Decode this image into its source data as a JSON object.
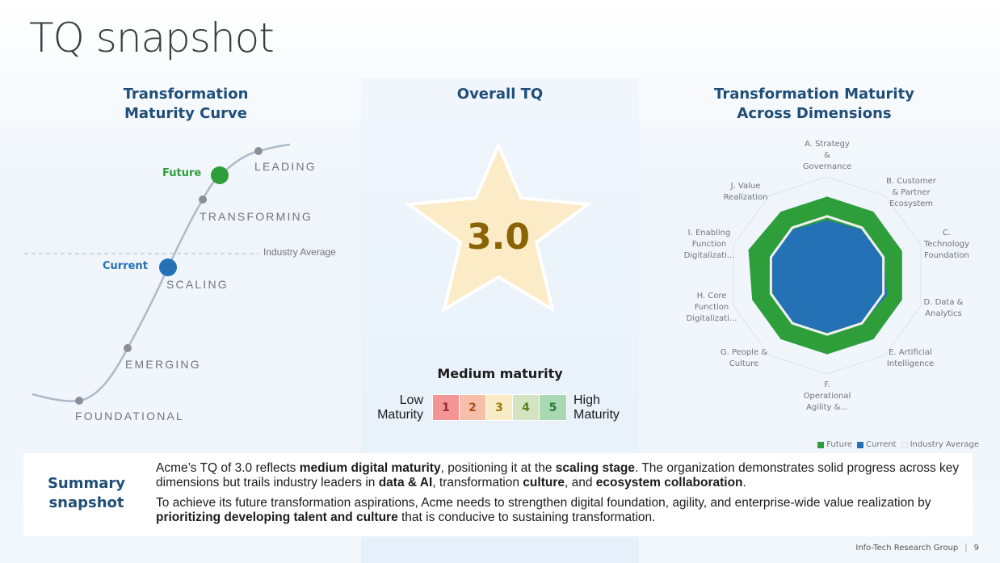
{
  "page": {
    "title": "TQ snapshot"
  },
  "curve_section": {
    "title_line1": "Transformation",
    "title_line2": "Maturity Curve",
    "stages": [
      "FOUNDATIONAL",
      "EMERGING",
      "SCALING",
      "TRANSFORMING",
      "LEADING"
    ],
    "markers": {
      "current_label": "Current",
      "future_label": "Future"
    },
    "industry_average_label": "Industry Average",
    "colors": {
      "current": "#2471b6",
      "future": "#2e9e3a",
      "stage_dot": "#8a9099",
      "curve": "#aebbc8"
    }
  },
  "overall_section": {
    "title": "Overall TQ",
    "score": "3.0",
    "maturity_heading": "Medium maturity",
    "scale_low_line1": "Low",
    "scale_low_line2": "Maturity",
    "scale_high_line1": "High",
    "scale_high_line2": "Maturity",
    "scale": [
      {
        "value": "1",
        "bg": "#f49494",
        "fg": "#9b2c2c"
      },
      {
        "value": "2",
        "bg": "#f7bea9",
        "fg": "#a8511f"
      },
      {
        "value": "3",
        "bg": "#faebc7",
        "fg": "#9b7a12"
      },
      {
        "value": "4",
        "bg": "#d4e4c0",
        "fg": "#5b7f1f"
      },
      {
        "value": "5",
        "bg": "#a9d8b5",
        "fg": "#2a7a33"
      }
    ],
    "star_fill": "#fbecc7",
    "score_color": "#8a6305"
  },
  "dimensions_section": {
    "title_line1": "Transformation Maturity",
    "title_line2": "Across Dimensions",
    "legend": {
      "future": "Future",
      "current": "Current",
      "industry_average": "Industry Average"
    }
  },
  "chart_data": {
    "type": "radar",
    "title": "Transformation Maturity Across Dimensions",
    "categories": [
      "A. Strategy & Governance",
      "B. Customer & Partner Ecosystem",
      "C. Technology Foundation",
      "D. Data & Analytics",
      "E. Artificial Intelligence",
      "F. Operational Agility &...",
      "G. People & Culture",
      "H. Core Function Digitalizati...",
      "I. Enabling Function Digitalizati...",
      "J. Value Realization"
    ],
    "category_labels_lines": [
      [
        "A. Strategy",
        "&",
        "Governance"
      ],
      [
        "B. Customer",
        "& Partner",
        "Ecosystem"
      ],
      [
        "C.",
        "Technology",
        "Foundation"
      ],
      [
        "D. Data &",
        "Analytics"
      ],
      [
        "E. Artificial",
        "Intelligence"
      ],
      [
        "F.",
        "Operational",
        "Agility &..."
      ],
      [
        "G. People &",
        "Culture"
      ],
      [
        "H. Core",
        "Function",
        "Digitalizati..."
      ],
      [
        "I. Enabling",
        "Function",
        "Digitalizati..."
      ],
      [
        "J. Value",
        "Realization"
      ]
    ],
    "rmax": 5,
    "series": [
      {
        "name": "Future",
        "color": "#2e9e3a",
        "values": [
          4.0,
          4.0,
          4.0,
          4.0,
          4.0,
          4.0,
          4.0,
          4.0,
          4.2,
          4.0
        ]
      },
      {
        "name": "Current",
        "color": "#2471b6",
        "values": [
          2.8,
          2.9,
          3.0,
          3.2,
          3.0,
          2.9,
          3.0,
          2.9,
          3.1,
          2.9
        ]
      },
      {
        "name": "Industry Average",
        "color": "#f0f0f0",
        "values": [
          3.0,
          3.0,
          3.0,
          3.0,
          3.0,
          3.0,
          3.0,
          3.0,
          3.0,
          3.0
        ]
      }
    ],
    "legend_position": "bottom-right",
    "grid": true
  },
  "summary": {
    "title_line1": "Summary",
    "title_line2": "snapshot",
    "p1": [
      {
        "t": "Acme’s TQ of 3.0 reflects ",
        "b": false
      },
      {
        "t": "medium digital maturity",
        "b": true
      },
      {
        "t": ", positioning it at the ",
        "b": false
      },
      {
        "t": "scaling stage",
        "b": true
      },
      {
        "t": ". The organization demonstrates solid progress across key dimensions but trails industry leaders in ",
        "b": false
      },
      {
        "t": "data & AI",
        "b": true
      },
      {
        "t": ", transformation ",
        "b": false
      },
      {
        "t": "culture",
        "b": true
      },
      {
        "t": ", and ",
        "b": false
      },
      {
        "t": "ecosystem collaboration",
        "b": true
      },
      {
        "t": ".",
        "b": false
      }
    ],
    "p2": [
      {
        "t": "To achieve its future transformation aspirations, Acme needs to strengthen digital foundation, agility, and enterprise-wide value realization by ",
        "b": false
      },
      {
        "t": "prioritizing developing talent and culture",
        "b": true
      },
      {
        "t": " that is conducive to sustaining transformation.",
        "b": false
      }
    ]
  },
  "footer": {
    "org": "Info-Tech Research Group",
    "page_number": "9"
  }
}
